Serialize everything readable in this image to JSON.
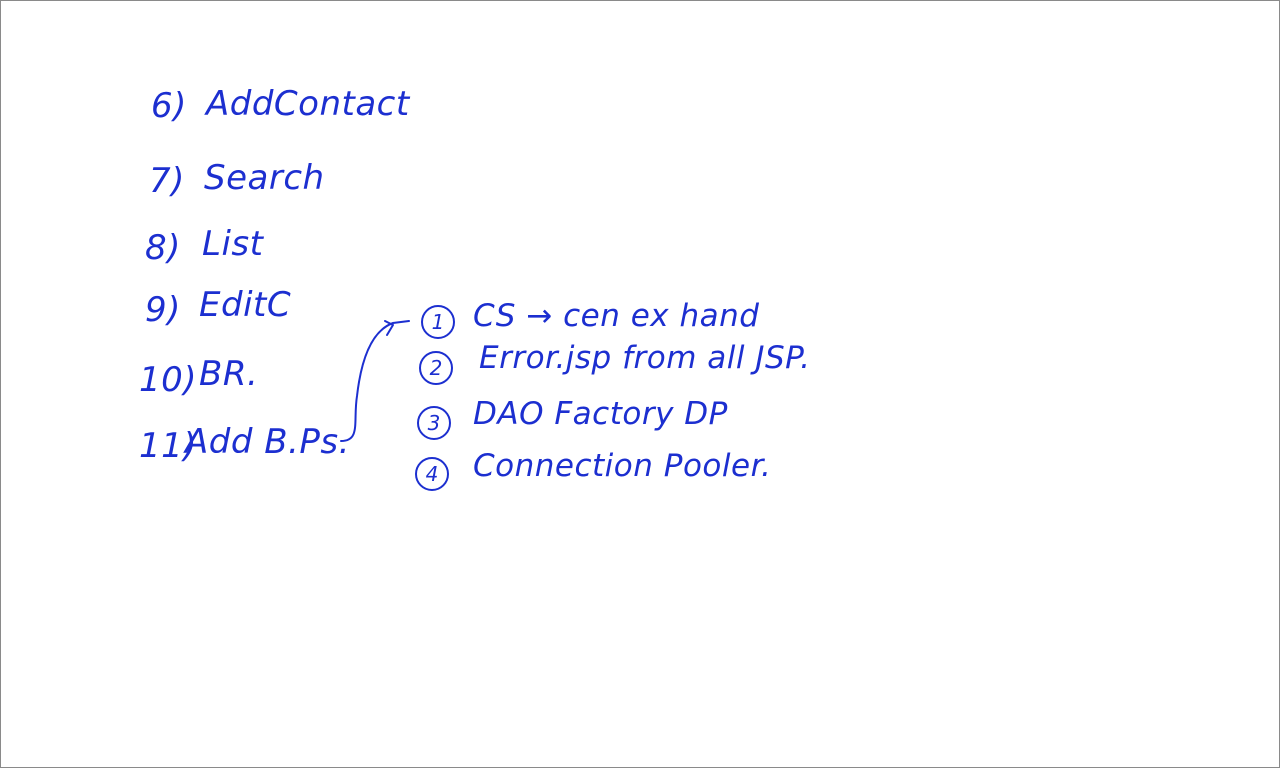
{
  "main_list": [
    {
      "number": "6)",
      "label": "AddContact"
    },
    {
      "number": "7)",
      "label": "Search"
    },
    {
      "number": "8)",
      "label": "List"
    },
    {
      "number": "9)",
      "label": "EditC"
    },
    {
      "number": "10)",
      "label": "BR."
    },
    {
      "number": "11)",
      "label": "Add B.Ps."
    }
  ],
  "sub_list": [
    {
      "marker": "1",
      "text": "CS → cen ex hand"
    },
    {
      "marker": "2",
      "text": "Error.jsp from all JSP."
    },
    {
      "marker": "3",
      "text": "DAO Factory DP"
    },
    {
      "marker": "4",
      "text": "Connection Pooler."
    }
  ],
  "colors": {
    "ink": "#1c2fd0",
    "background": "#ffffff",
    "border": "#8a8a8a"
  }
}
